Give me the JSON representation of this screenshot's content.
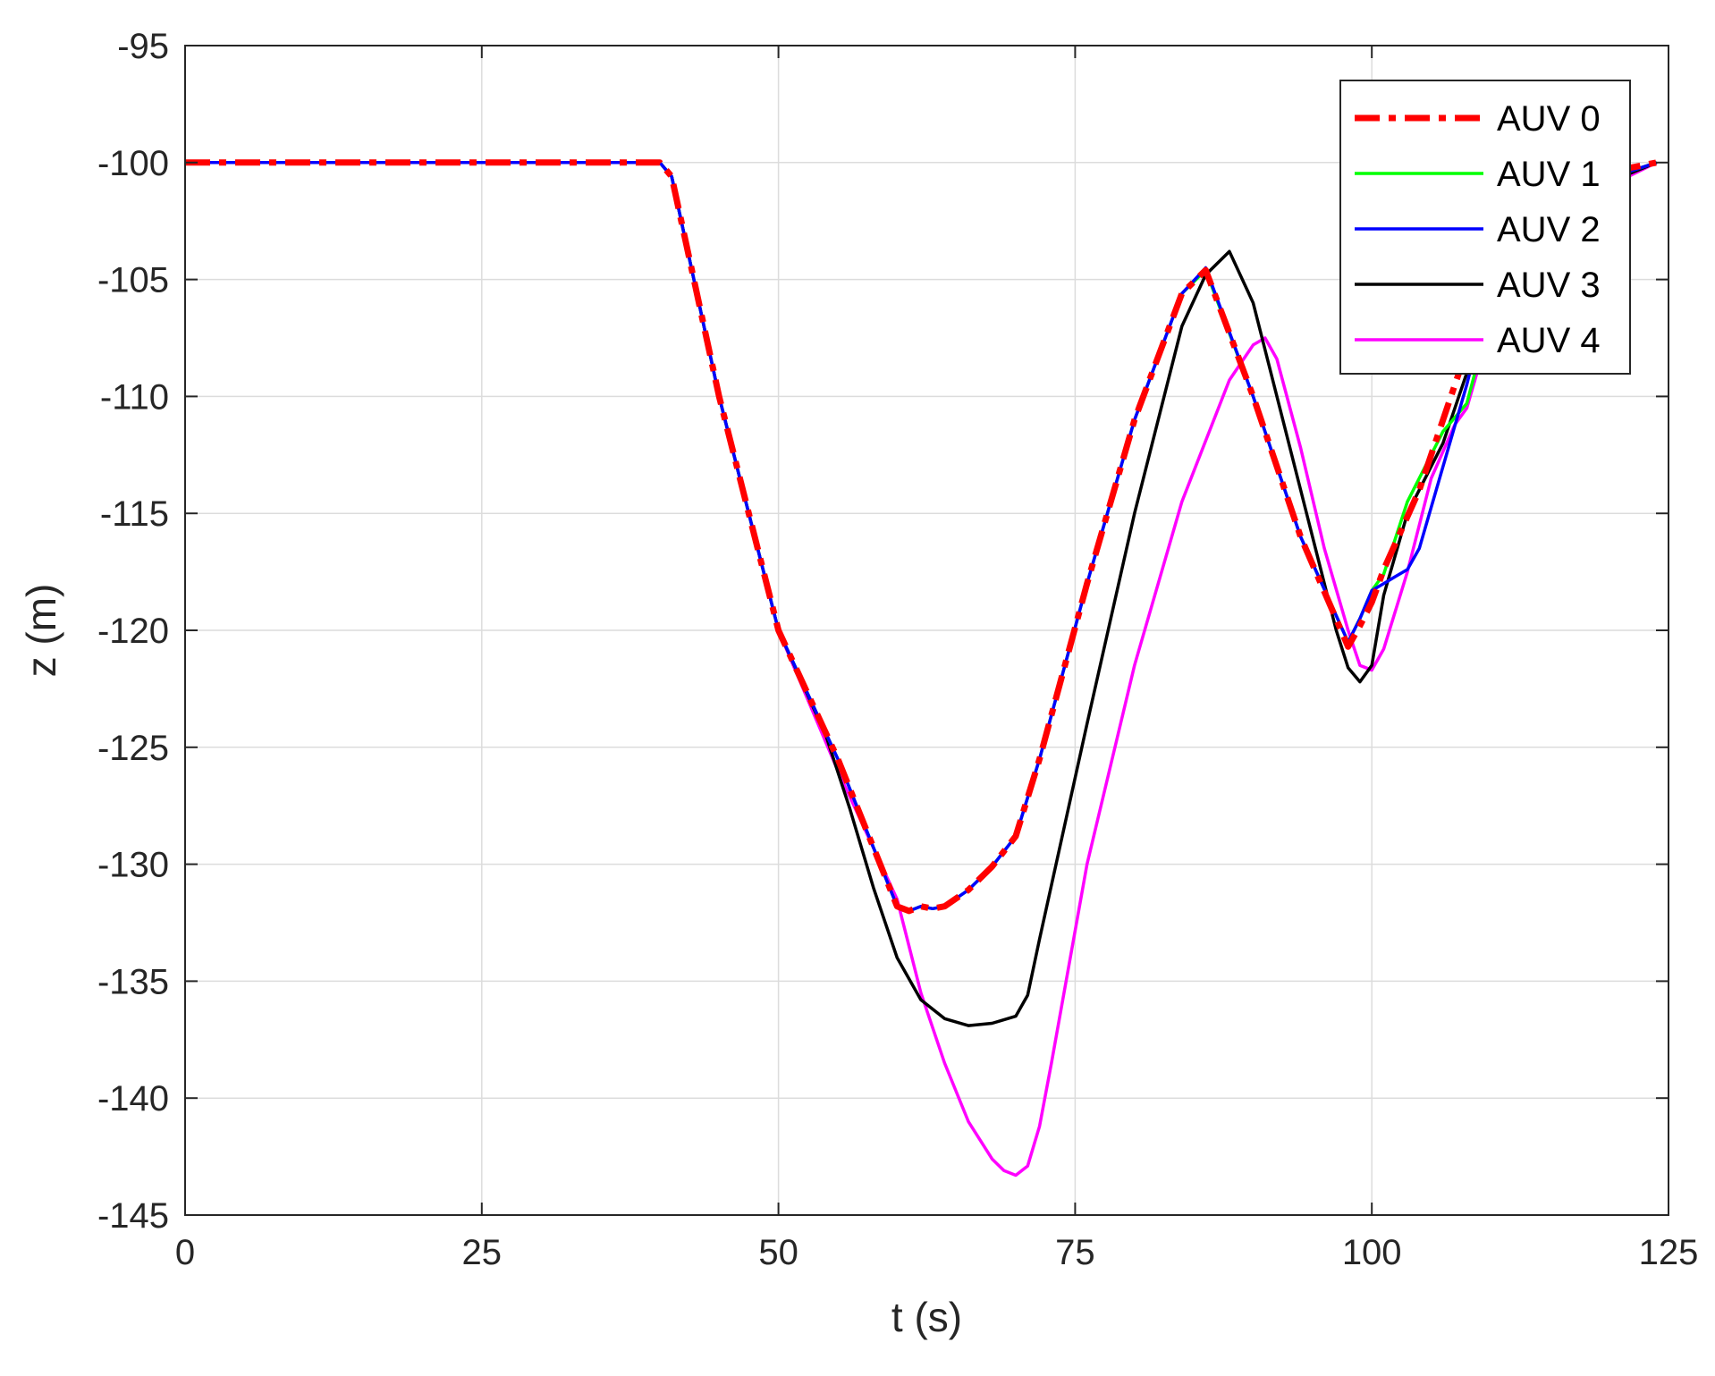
{
  "chart_data": {
    "type": "line",
    "title": "",
    "xlabel": "t (s)",
    "ylabel": "z (m)",
    "xlim": [
      0,
      125
    ],
    "ylim": [
      -145,
      -95
    ],
    "xticks": [
      0,
      25,
      50,
      75,
      100,
      125
    ],
    "yticks": [
      -95,
      -100,
      -105,
      -110,
      -115,
      -120,
      -125,
      -130,
      -135,
      -140,
      -145
    ],
    "grid": true,
    "legend_position": "top-right",
    "series": [
      {
        "name": "AUV 0",
        "color": "#ff0000",
        "style": "dashdot",
        "x": [
          0,
          40,
          41,
          45,
          50,
          55,
          60,
          61,
          62,
          63,
          64,
          66,
          68,
          70,
          72,
          76,
          80,
          84,
          86,
          90,
          94,
          98,
          99,
          100,
          101,
          104,
          108,
          110,
          112,
          124
        ],
        "y": [
          -100,
          -100,
          -100.6,
          -110,
          -120,
          -125.5,
          -131.8,
          -132,
          -131.8,
          -131.9,
          -131.8,
          -131.1,
          -130.1,
          -128.8,
          -125.5,
          -118,
          -111,
          -105.6,
          -104.6,
          -110,
          -116,
          -120.7,
          -119.8,
          -118.8,
          -117.4,
          -114,
          -108,
          -104.5,
          -101.2,
          -100
        ]
      },
      {
        "name": "AUV 1",
        "color": "#00ff00",
        "style": "solid",
        "x": [
          0,
          40,
          41,
          45,
          50,
          55,
          60,
          61,
          62,
          63,
          64,
          66,
          68,
          70,
          72,
          76,
          80,
          84,
          86,
          90,
          94,
          98,
          99,
          100,
          101,
          103,
          106,
          108,
          110,
          112,
          124
        ],
        "y": [
          -100,
          -100,
          -100.6,
          -110,
          -120,
          -125.5,
          -131.8,
          -132,
          -131.8,
          -131.9,
          -131.8,
          -131.1,
          -130.1,
          -128.8,
          -125.5,
          -118,
          -111,
          -105.6,
          -104.6,
          -110,
          -116,
          -120.5,
          -119.5,
          -118.3,
          -117.6,
          -114.5,
          -111.5,
          -110.3,
          -106.5,
          -102,
          -100
        ]
      },
      {
        "name": "AUV 2",
        "color": "#0000ff",
        "style": "solid",
        "x": [
          0,
          40,
          41,
          45,
          50,
          55,
          60,
          61,
          62,
          63,
          64,
          66,
          68,
          70,
          72,
          76,
          80,
          84,
          86,
          90,
          94,
          98,
          99,
          100,
          101,
          102,
          103,
          104,
          106,
          108,
          110,
          112,
          124
        ],
        "y": [
          -100,
          -100,
          -100.6,
          -110,
          -120,
          -125.5,
          -131.8,
          -132,
          -131.8,
          -131.9,
          -131.8,
          -131.1,
          -130.1,
          -128.8,
          -125.5,
          -118,
          -111,
          -105.6,
          -104.5,
          -110,
          -116,
          -120.5,
          -119.5,
          -118.3,
          -118,
          -117.7,
          -117.4,
          -116.5,
          -113,
          -109.5,
          -105.5,
          -102,
          -100
        ]
      },
      {
        "name": "AUV 3",
        "color": "#000000",
        "style": "solid",
        "x": [
          0,
          40,
          41,
          45,
          50,
          54,
          56,
          58,
          60,
          62,
          64,
          66,
          68,
          70,
          71,
          72,
          76,
          80,
          84,
          86,
          88,
          90,
          94,
          97,
          98,
          99,
          100,
          101,
          103,
          106,
          108,
          110,
          112,
          124
        ],
        "y": [
          -100,
          -100,
          -100.6,
          -110,
          -120,
          -124.5,
          -127.6,
          -131,
          -134,
          -135.8,
          -136.6,
          -136.9,
          -136.8,
          -136.5,
          -135.6,
          -133.2,
          -124,
          -115,
          -107,
          -104.8,
          -103.8,
          -106,
          -114,
          -120,
          -121.6,
          -122.2,
          -121.5,
          -118.5,
          -115,
          -112,
          -109,
          -106,
          -102.5,
          -100
        ]
      },
      {
        "name": "AUV 4",
        "color": "#ff00ff",
        "style": "solid",
        "x": [
          0,
          40,
          41,
          45,
          50,
          55,
          60,
          62,
          64,
          66,
          68,
          69,
          70,
          71,
          72,
          73,
          76,
          80,
          84,
          88,
          90,
          91,
          92,
          94,
          96,
          98,
          99,
          100,
          101,
          103,
          105,
          107,
          108,
          110,
          112,
          124
        ],
        "y": [
          -100,
          -100,
          -100.6,
          -110,
          -120,
          -126,
          -131.5,
          -135.5,
          -138.5,
          -141,
          -142.6,
          -143.1,
          -143.3,
          -142.9,
          -141.2,
          -138.5,
          -130,
          -121.5,
          -114.5,
          -109.3,
          -107.8,
          -107.5,
          -108.4,
          -112.2,
          -116.5,
          -120,
          -121.5,
          -121.7,
          -120.8,
          -117.5,
          -113.5,
          -111.2,
          -110.5,
          -107,
          -103,
          -100
        ]
      }
    ]
  }
}
